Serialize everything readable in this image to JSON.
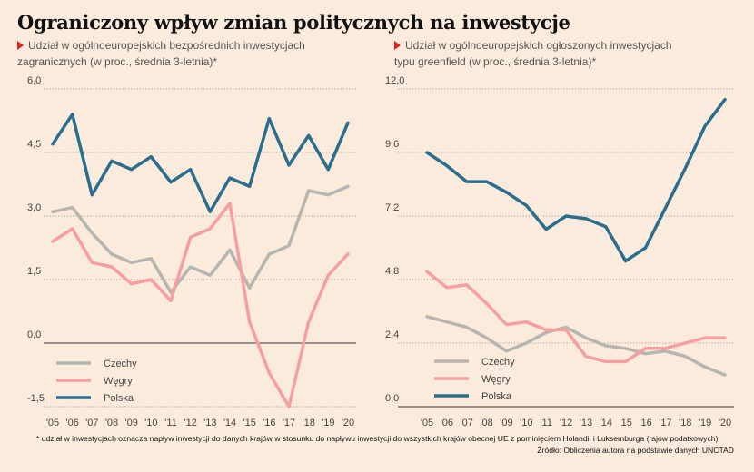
{
  "title": "Ograniczony wpływ zmian politycznych na inwestycje",
  "colors": {
    "Czechy": "#b7b5b0",
    "Węgry": "#f59fa0",
    "Polska": "#2b6d8c",
    "marker": "#e2231a"
  },
  "legend": [
    "Czechy",
    "Węgry",
    "Polska"
  ],
  "footnote": "* udział w inwestycjach oznacza napływ inwestycji do danych krajów w stosunku do napływu inwestycji do wszystkich krajów obecnej UE z pominięciem Holandii i Luksemburga (rajów podatkowych).",
  "source": "Źródło: Obliczenia autora na podstawie danych UNCTAD",
  "chart_data": [
    {
      "type": "line",
      "subtitle_line1": "Udział w ogólnoeuropejskich bezpośrednich inwestycjach",
      "subtitle_line2": "zagranicznych (w proc., średnia 3-letnia)*",
      "x": [
        "'05",
        "'06",
        "'07",
        "'08",
        "'09",
        "'10",
        "'11",
        "'12",
        "'13",
        "'14",
        "'15",
        "'16",
        "'17",
        "'18",
        "'19",
        "'20"
      ],
      "yticks": [
        "6,0",
        "4,5",
        "3,0",
        "1,5",
        "0,0",
        "-1,5"
      ],
      "ylim": [
        -1.5,
        6.0
      ],
      "legend_position": "bottom-left",
      "series": [
        {
          "name": "Czechy",
          "values": [
            3.1,
            3.2,
            2.6,
            2.1,
            1.9,
            2.0,
            1.2,
            1.8,
            1.6,
            2.2,
            1.3,
            2.1,
            2.3,
            3.6,
            3.5,
            3.7
          ]
        },
        {
          "name": "Węgry",
          "values": [
            2.4,
            2.7,
            1.9,
            1.8,
            1.4,
            1.5,
            1.0,
            2.5,
            2.7,
            3.3,
            0.5,
            -0.7,
            -1.5,
            0.5,
            1.6,
            2.1
          ]
        },
        {
          "name": "Polska",
          "values": [
            4.7,
            5.4,
            3.5,
            4.3,
            4.1,
            4.4,
            3.8,
            4.1,
            3.1,
            3.9,
            3.7,
            5.3,
            4.2,
            4.9,
            4.1,
            5.2
          ]
        }
      ]
    },
    {
      "type": "line",
      "subtitle_line1": "Udział w ogólnoeuropejskich ogłoszonych inwestycjach",
      "subtitle_line2": "typu greenfield (w proc., średnia 3-letnia)*",
      "x": [
        "'05",
        "'06",
        "'07",
        "'08",
        "'09",
        "'10",
        "'11",
        "'12",
        "'13",
        "'14",
        "'15",
        "'16",
        "'17",
        "'18",
        "'19",
        "'20"
      ],
      "yticks": [
        "12,0",
        "9,6",
        "7,2",
        "4,8",
        "2,4",
        "0,0"
      ],
      "ylim": [
        0,
        12.0
      ],
      "legend_position": "bottom-left",
      "series": [
        {
          "name": "Czechy",
          "values": [
            3.4,
            3.2,
            3.0,
            2.6,
            2.1,
            2.4,
            2.8,
            3.0,
            2.6,
            2.3,
            2.2,
            2.0,
            2.1,
            1.9,
            1.5,
            1.2
          ]
        },
        {
          "name": "Węgry",
          "values": [
            5.1,
            4.5,
            4.6,
            3.9,
            3.1,
            3.2,
            2.9,
            2.9,
            1.9,
            1.7,
            1.7,
            2.2,
            2.2,
            2.4,
            2.6,
            2.6
          ]
        },
        {
          "name": "Polska",
          "values": [
            9.6,
            9.1,
            8.5,
            8.5,
            8.1,
            7.6,
            6.7,
            7.2,
            7.1,
            6.8,
            5.5,
            6.0,
            7.5,
            9.0,
            10.6,
            11.6
          ]
        }
      ]
    }
  ]
}
